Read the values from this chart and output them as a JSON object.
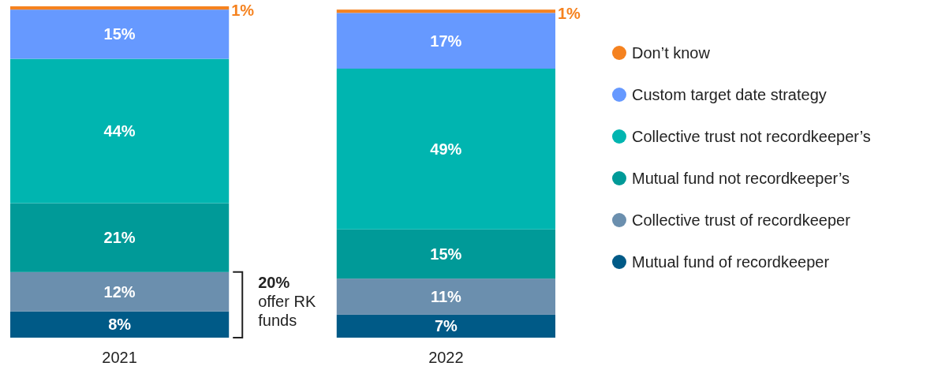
{
  "chart_data": {
    "type": "bar",
    "stacked": true,
    "categories": [
      "2021",
      "2022"
    ],
    "legend": "right",
    "series": [
      {
        "name": "Mutual fund of recordkeeper",
        "color": "#005a87",
        "values": [
          8,
          7
        ],
        "value_labels": [
          "8%",
          "7%"
        ]
      },
      {
        "name": "Collective trust of recordkeeper",
        "color": "#6b8fae",
        "values": [
          12,
          11
        ],
        "value_labels": [
          "12%",
          "11%"
        ]
      },
      {
        "name": "Mutual fund not recordkeeper’s",
        "color": "#009a98",
        "values": [
          21,
          15
        ],
        "value_labels": [
          "21%",
          "15%"
        ]
      },
      {
        "name": "Collective trust not recordkeeper’s",
        "color": "#00b5b0",
        "values": [
          44,
          49
        ],
        "value_labels": [
          "44%",
          "49%"
        ]
      },
      {
        "name": "Custom target date strategy",
        "color": "#6699ff",
        "values": [
          15,
          17
        ],
        "value_labels": [
          "15%",
          "17%"
        ]
      },
      {
        "name": "Don’t know",
        "color": "#f5821f",
        "values": [
          1,
          1
        ],
        "value_labels": [
          "1%",
          "1%"
        ]
      }
    ],
    "annotations": [
      "20%",
      "offer RK funds"
    ]
  }
}
